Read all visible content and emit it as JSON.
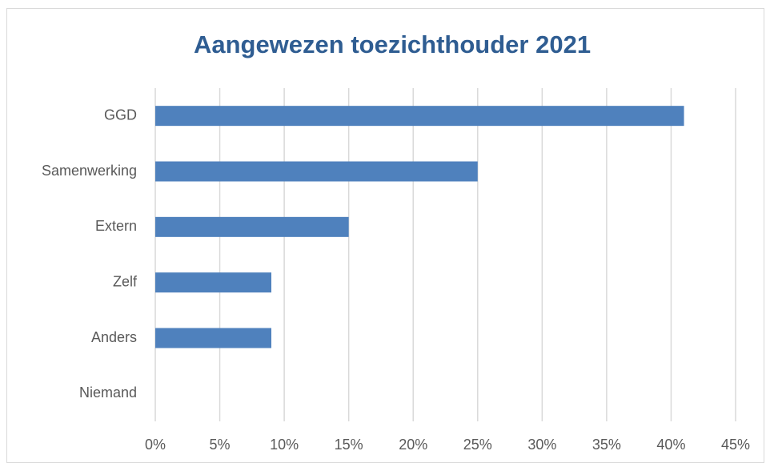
{
  "chart_data": {
    "type": "bar",
    "orientation": "horizontal",
    "title": "Aangewezen toezichthouder 2021",
    "categories": [
      "GGD",
      "Samenwerking",
      "Extern",
      "Zelf",
      "Anders",
      "Niemand"
    ],
    "values": [
      41,
      25,
      15,
      9,
      9,
      0
    ],
    "color": "#4f81bd",
    "xlim": [
      0,
      45
    ],
    "xticks": [
      {
        "value": 0,
        "label": "0%"
      },
      {
        "value": 5,
        "label": "5%"
      },
      {
        "value": 10,
        "label": "10%"
      },
      {
        "value": 15,
        "label": "15%"
      },
      {
        "value": 20,
        "label": "20%"
      },
      {
        "value": 25,
        "label": "25%"
      },
      {
        "value": 30,
        "label": "30%"
      },
      {
        "value": 35,
        "label": "35%"
      },
      {
        "value": 40,
        "label": "40%"
      },
      {
        "value": 45,
        "label": "45%"
      }
    ],
    "grid": true
  }
}
